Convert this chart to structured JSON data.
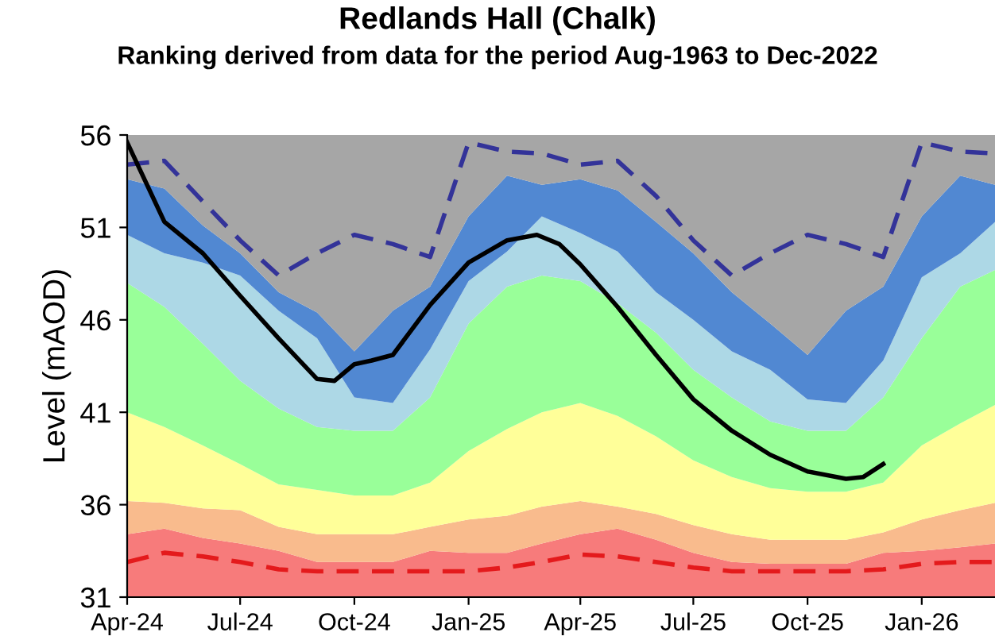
{
  "chart_data": {
    "type": "area",
    "title": "Redlands Hall (Chalk)",
    "subtitle": "Ranking derived from data for the period Aug-1963 to Dec-2022",
    "ylabel": "Level (mAOD)",
    "x": [
      "2024-04",
      "2024-05",
      "2024-06",
      "2024-07",
      "2024-08",
      "2024-09",
      "2024-10",
      "2024-11",
      "2024-12",
      "2025-01",
      "2025-02",
      "2025-03",
      "2025-04",
      "2025-05",
      "2025-06",
      "2025-07",
      "2025-08",
      "2025-09",
      "2025-10",
      "2025-11",
      "2025-12",
      "2026-01",
      "2026-02",
      "2026-03"
    ],
    "series": [
      {
        "color": "#f77b7b",
        "values": [
          34.4,
          34.7,
          34.2,
          33.9,
          33.5,
          32.9,
          32.9,
          32.9,
          33.5,
          33.4,
          33.4,
          33.9,
          34.4,
          34.7,
          34.1,
          33.4,
          32.9,
          32.8,
          32.8,
          32.8,
          33.4,
          33.5,
          33.7,
          33.9
        ]
      },
      {
        "color": "#f9bb8d",
        "values": [
          36.2,
          36.1,
          35.8,
          35.7,
          34.8,
          34.4,
          34.4,
          34.4,
          34.8,
          35.2,
          35.4,
          35.9,
          36.2,
          35.9,
          35.5,
          34.9,
          34.4,
          34.1,
          34.1,
          34.1,
          34.5,
          35.2,
          35.7,
          36.1
        ]
      },
      {
        "color": "#ffff99",
        "values": [
          41.0,
          40.2,
          39.2,
          38.2,
          37.1,
          36.8,
          36.5,
          36.5,
          37.2,
          38.9,
          40.1,
          41.0,
          41.5,
          40.8,
          39.7,
          38.4,
          37.5,
          36.9,
          36.7,
          36.7,
          37.2,
          39.2,
          40.4,
          41.4
        ]
      },
      {
        "color": "#99ff99",
        "values": [
          48.0,
          46.7,
          44.7,
          42.7,
          41.2,
          40.2,
          40.0,
          40.0,
          41.8,
          45.8,
          47.8,
          48.4,
          48.1,
          46.9,
          45.3,
          43.3,
          41.8,
          40.5,
          40.0,
          40.0,
          41.8,
          45.0,
          47.8,
          48.7
        ]
      },
      {
        "color": "#add8e6",
        "values": [
          50.6,
          49.6,
          49.1,
          48.4,
          46.5,
          45.0,
          41.8,
          41.5,
          44.4,
          48.1,
          49.7,
          51.6,
          50.7,
          49.7,
          47.5,
          46.0,
          44.3,
          43.3,
          41.7,
          41.5,
          43.8,
          48.3,
          49.6,
          51.3
        ]
      },
      {
        "color": "#5188d2",
        "values": [
          53.6,
          53.1,
          51.1,
          49.6,
          47.5,
          46.4,
          44.3,
          46.5,
          47.8,
          51.6,
          53.8,
          53.3,
          53.6,
          53.0,
          51.3,
          49.6,
          47.5,
          45.8,
          44.1,
          46.5,
          47.8,
          51.6,
          53.8,
          53.3
        ]
      },
      {
        "color": "#a6a6a6",
        "values": [
          56,
          56,
          56,
          56,
          56,
          56,
          56,
          56,
          56,
          56,
          56,
          56,
          56,
          56,
          56,
          56,
          56,
          56,
          56,
          56,
          56,
          56,
          56,
          56
        ]
      },
      {
        "type": "line",
        "color": "#333399",
        "line_style": "dashed",
        "values": [
          54.4,
          54.6,
          52.4,
          50.3,
          48.4,
          49.6,
          50.6,
          50.1,
          49.4,
          55.6,
          55.1,
          55.0,
          54.4,
          54.6,
          52.7,
          50.3,
          48.4,
          49.6,
          50.6,
          50.1,
          49.4,
          55.6,
          55.1,
          55.0
        ]
      },
      {
        "type": "line",
        "color": "#e41a1c",
        "line_style": "dashed",
        "values": [
          32.9,
          33.4,
          33.2,
          32.9,
          32.5,
          32.4,
          32.4,
          32.4,
          32.4,
          32.4,
          32.6,
          32.9,
          33.3,
          33.2,
          32.9,
          32.6,
          32.4,
          32.4,
          32.4,
          32.4,
          32.5,
          32.8,
          32.9,
          32.9
        ]
      },
      {
        "type": "line",
        "color": "#000000",
        "line_style": "solid",
        "x": [
          "2024-04-01",
          "2024-05-01",
          "2024-06-01",
          "2024-07-01",
          "2024-08-01",
          "2024-09-01",
          "2024-09-15",
          "2024-10-01",
          "2024-10-15",
          "2024-11-01",
          "2024-12-01",
          "2025-01-01",
          "2025-02-01",
          "2025-02-25",
          "2025-03-15",
          "2025-04-01",
          "2025-05-01",
          "2025-06-01",
          "2025-07-01",
          "2025-08-01",
          "2025-09-01",
          "2025-10-01",
          "2025-11-01",
          "2025-11-15",
          "2025-12-01"
        ],
        "values": [
          55.6,
          51.3,
          49.6,
          47.3,
          45.0,
          42.8,
          42.7,
          43.6,
          43.8,
          44.1,
          46.8,
          49.1,
          50.3,
          50.6,
          50.1,
          49.0,
          46.7,
          44.1,
          41.7,
          40.0,
          38.7,
          37.8,
          37.4,
          37.5,
          38.2
        ]
      }
    ],
    "xlim": [
      "2024-04-01",
      "2026-03-01"
    ],
    "xticks": [
      {
        "value": "2024-04-01",
        "label": "Apr-24"
      },
      {
        "value": "2024-07-01",
        "label": "Jul-24"
      },
      {
        "value": "2024-10-01",
        "label": "Oct-24"
      },
      {
        "value": "2025-01-01",
        "label": "Jan-25"
      },
      {
        "value": "2025-04-01",
        "label": "Apr-25"
      },
      {
        "value": "2025-07-01",
        "label": "Jul-25"
      },
      {
        "value": "2025-10-01",
        "label": "Oct-25"
      },
      {
        "value": "2026-01-01",
        "label": "Jan-26"
      }
    ],
    "ylim": [
      31,
      56
    ],
    "yticks": [
      31,
      36,
      41,
      46,
      51,
      56
    ],
    "grid": false,
    "legend": false
  }
}
